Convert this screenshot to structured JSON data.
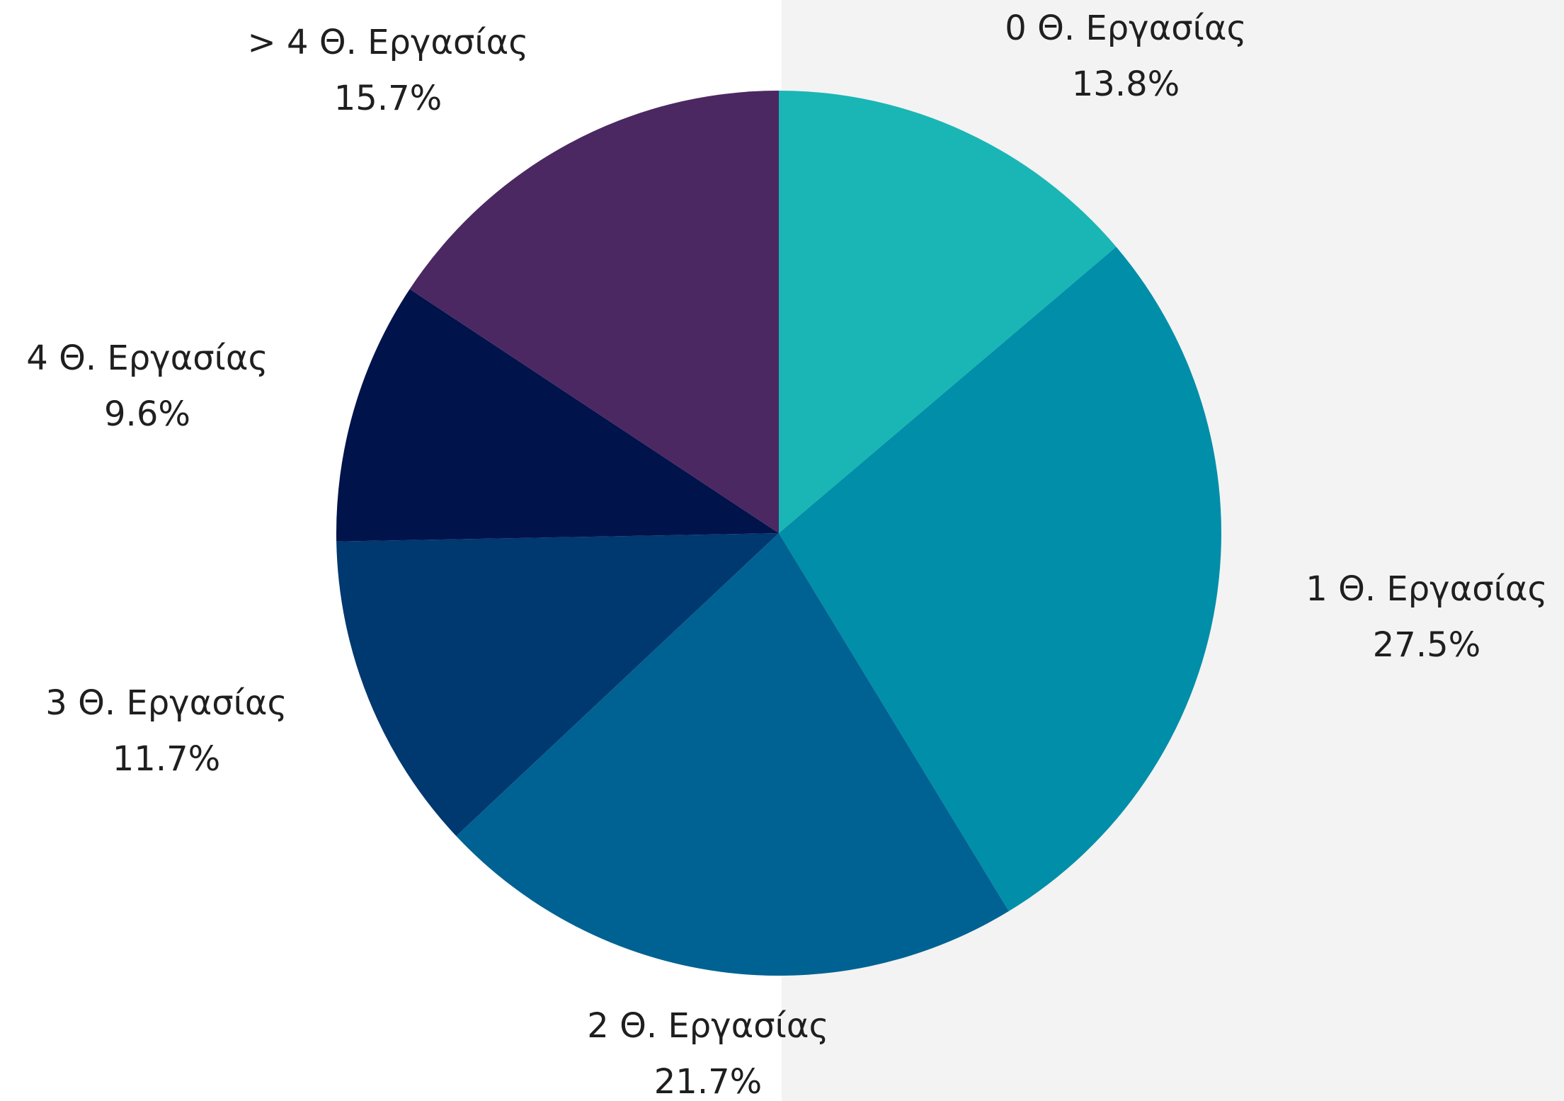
{
  "chart_data": {
    "type": "pie",
    "start_angle_deg": 0,
    "direction": "clockwise",
    "slices": [
      {
        "label": "0 Θ. Εργασίας",
        "value": 13.8,
        "value_label": "13.8%",
        "color": "#1ab6b5"
      },
      {
        "label": "1 Θ. Εργασίας",
        "value": 27.5,
        "value_label": "27.5%",
        "color": "#008ea9"
      },
      {
        "label": "2 Θ. Εργασίας",
        "value": 21.7,
        "value_label": "21.7%",
        "color": "#006292"
      },
      {
        "label": "3 Θ. Εργασίας",
        "value": 11.7,
        "value_label": "11.7%",
        "color": "#003870"
      },
      {
        "label": "4 Θ. Εργασίας",
        "value": 9.6,
        "value_label": "9.6%",
        "color": "#01134b"
      },
      {
        "label": "> 4 Θ. Εργασίας",
        "value": 15.7,
        "value_label": "15.7%",
        "color": "#4b2862"
      }
    ]
  }
}
